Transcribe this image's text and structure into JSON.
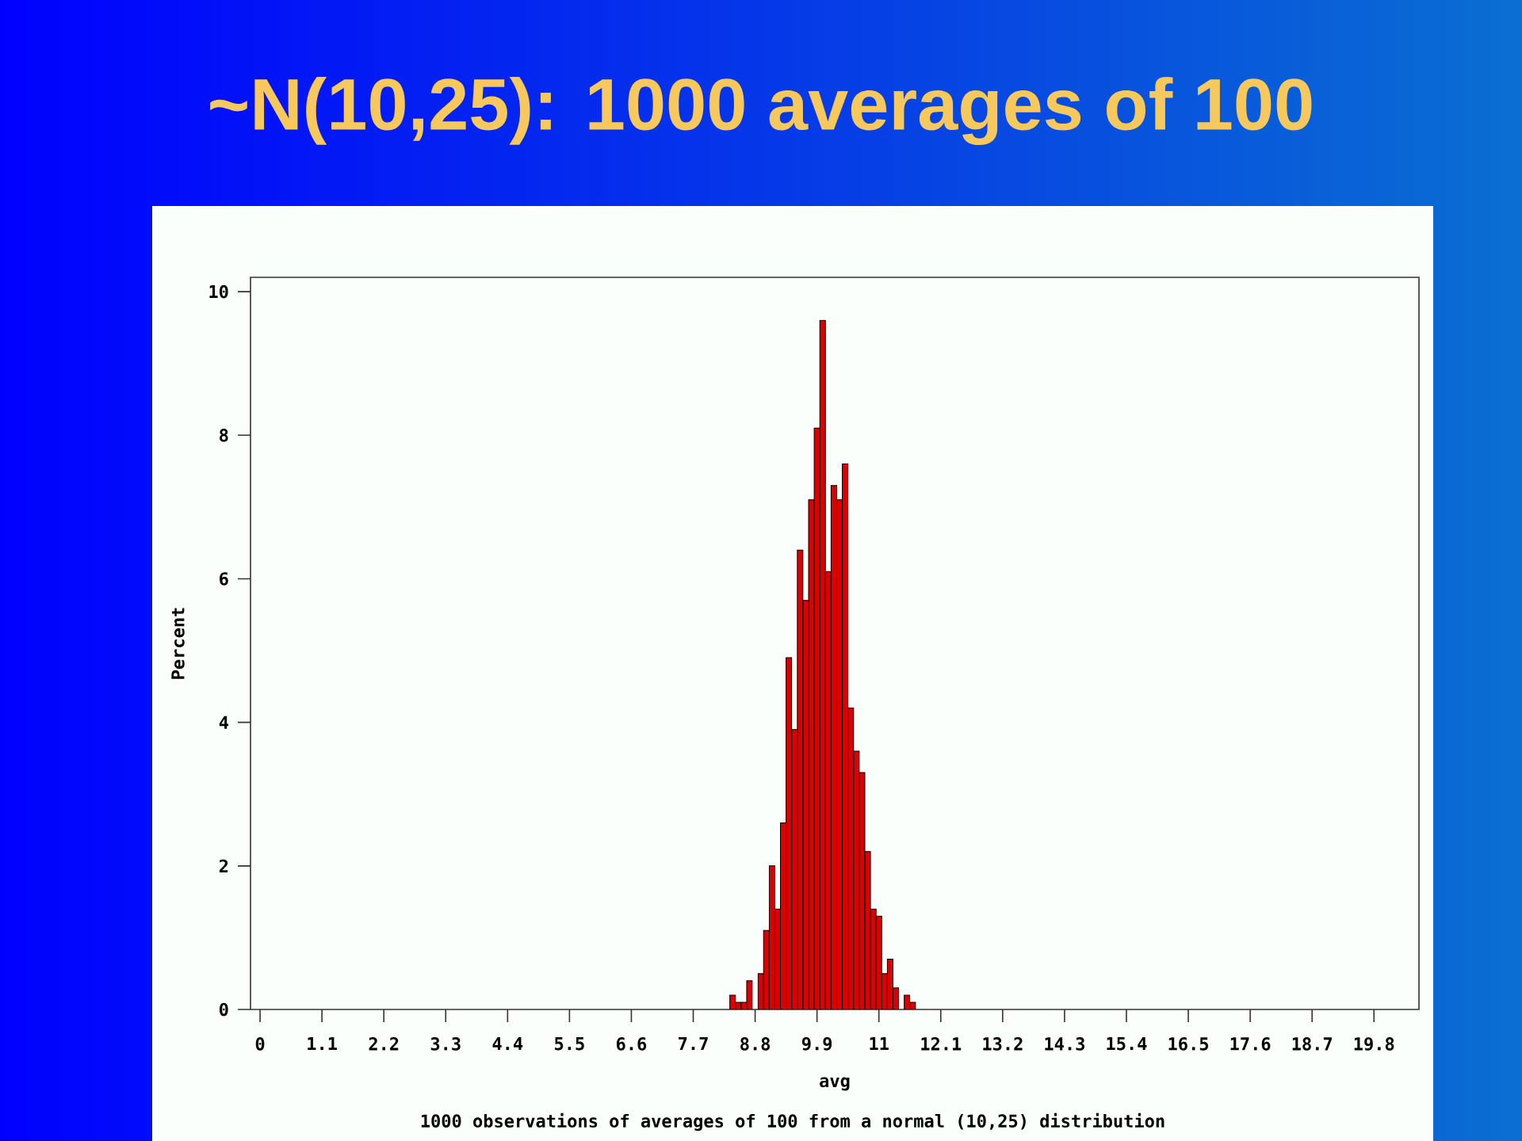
{
  "chart_data": {
    "type": "histogram",
    "title": "~N(10,25): 1000 averages of 100",
    "xlabel": "avg",
    "ylabel": "Percent",
    "annotations": [
      "1000 observations of averages of 100 from a normal (10,25) distribution"
    ],
    "bins": [
      8.35,
      8.45,
      8.55,
      8.65,
      8.75,
      8.85,
      8.95,
      9.05,
      9.15,
      9.25,
      9.35,
      9.45,
      9.55,
      9.65,
      9.75,
      9.85,
      9.95,
      10.05,
      10.15,
      10.25,
      10.35,
      10.45,
      10.55,
      10.65,
      10.75,
      10.85,
      10.95,
      11.05,
      11.15,
      11.25,
      11.35,
      11.45,
      11.55,
      11.65
    ],
    "values": [
      0.2,
      0.1,
      0.1,
      0.4,
      0,
      0.5,
      1.1,
      2.0,
      1.4,
      2.6,
      4.9,
      3.9,
      6.4,
      5.7,
      7.1,
      8.1,
      9.6,
      6.1,
      7.3,
      7.1,
      7.6,
      4.2,
      3.6,
      3.3,
      2.2,
      1.4,
      1.3,
      0.5,
      0.7,
      0.3,
      0,
      0.2,
      0.1
    ],
    "color": "#dd0000",
    "xlim": [
      -0.17,
      20.6
    ],
    "ylim": [
      0,
      10.2
    ],
    "xticks": [
      0,
      1.1,
      2.2,
      3.3,
      4.4,
      5.5,
      6.6,
      7.7,
      8.8,
      9.9,
      11,
      12.1,
      13.2,
      14.3,
      15.4,
      16.5,
      17.6,
      18.7,
      19.8
    ],
    "yticks": [
      0,
      2,
      4,
      6,
      8,
      10
    ],
    "grid": false
  }
}
